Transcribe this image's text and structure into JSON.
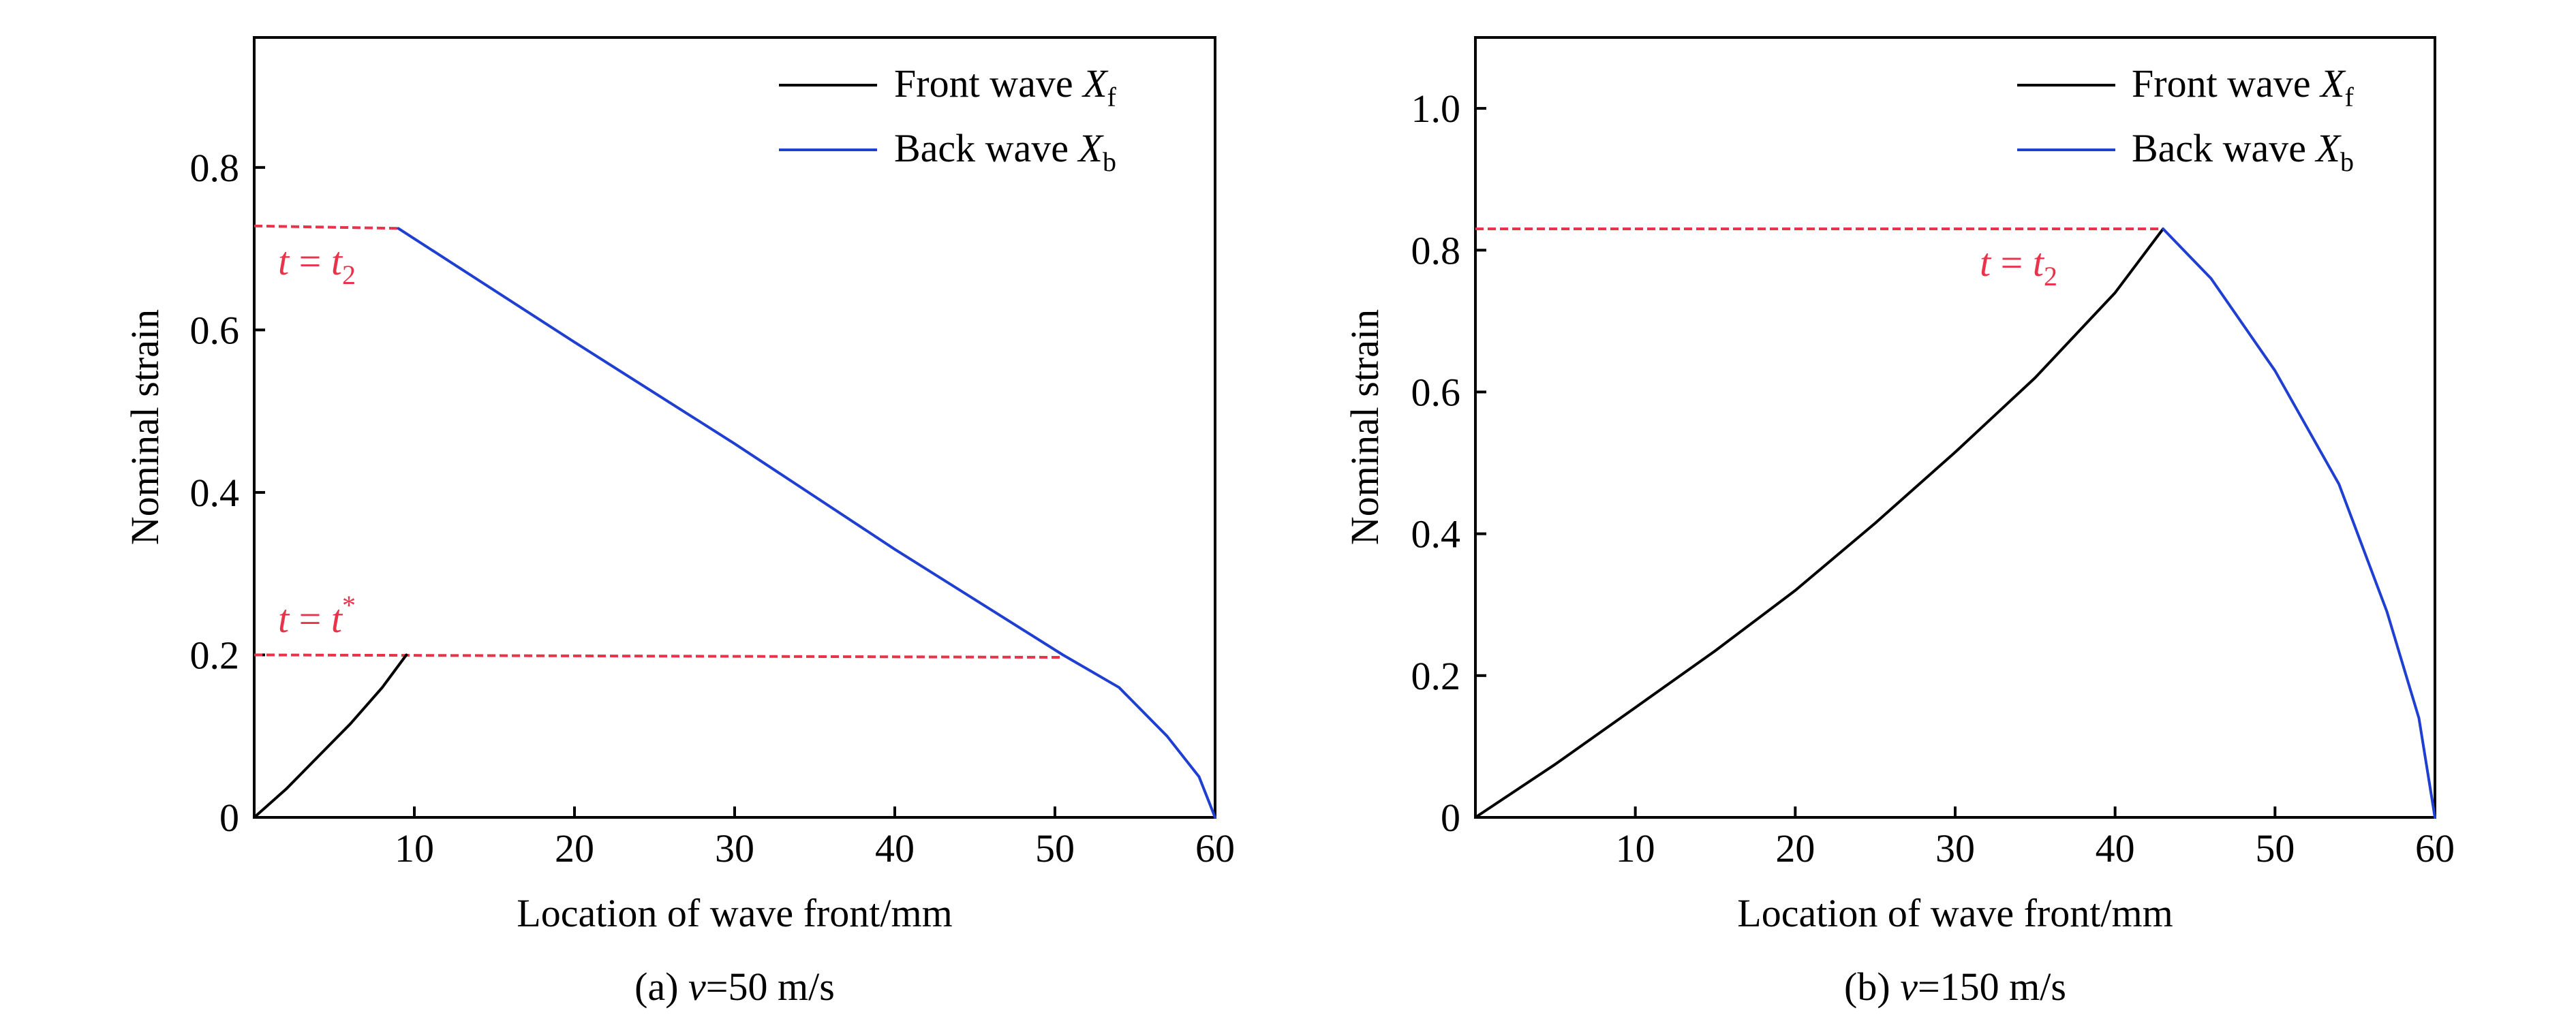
{
  "chart_data": [
    {
      "type": "line",
      "panel_id": "a",
      "caption_parts": [
        "(a) ",
        "v",
        "=50 m/s"
      ],
      "xlabel": "Location of wave front/mm",
      "ylabel": "Nominal strain",
      "xlim": [
        0,
        60
      ],
      "ylim": [
        0,
        0.96
      ],
      "xticks": [
        10,
        20,
        30,
        40,
        50,
        60
      ],
      "xtick_labels": [
        "10",
        "20",
        "30",
        "40",
        "50",
        "60"
      ],
      "yticks": [
        0,
        0.2,
        0.4,
        0.6,
        0.8
      ],
      "ytick_labels": [
        "0",
        "0.2",
        "0.4",
        "0.6",
        "0.8"
      ],
      "grid": false,
      "legend_position": "top-right",
      "series": [
        {
          "name": "Front wave X_f",
          "legend_parts": [
            "Front wave ",
            "X",
            "f"
          ],
          "color": "#000000",
          "x": [
            0.0,
            2.0,
            4.0,
            6.0,
            8.0,
            9.5
          ],
          "y": [
            0.0,
            0.035,
            0.075,
            0.115,
            0.16,
            0.2
          ]
        },
        {
          "name": "Back wave X_b",
          "legend_parts": [
            "Back wave ",
            "X",
            "b"
          ],
          "color": "#1f3fd1",
          "x": [
            9.0,
            20.0,
            30.0,
            40.0,
            50.5,
            54.0,
            57.0,
            59.0,
            60.0
          ],
          "y": [
            0.725,
            0.585,
            0.46,
            0.33,
            0.2,
            0.16,
            0.1,
            0.05,
            0.0
          ]
        }
      ],
      "reference_lines": [
        {
          "name": "t = t2",
          "color": "#e8334a",
          "x": [
            0.0,
            9.0
          ],
          "y": [
            0.728,
            0.725
          ]
        },
        {
          "name": "t = t*",
          "color": "#e8334a",
          "x": [
            0.0,
            50.5
          ],
          "y": [
            0.2,
            0.197
          ]
        }
      ],
      "annotations": [
        {
          "id": "a-t2",
          "parts": [
            "t",
            " = ",
            "t",
            "2"
          ],
          "color": "#e8334a"
        },
        {
          "id": "a-tstar",
          "parts": [
            "t",
            " = ",
            "t",
            "*"
          ],
          "color": "#e8334a"
        }
      ]
    },
    {
      "type": "line",
      "panel_id": "b",
      "caption_parts": [
        "(b) ",
        "v",
        "=150 m/s"
      ],
      "xlabel": "Location of wave front/mm",
      "ylabel": "Nominal strain",
      "xlim": [
        0,
        60
      ],
      "ylim": [
        0,
        1.1
      ],
      "xticks": [
        10,
        20,
        30,
        40,
        50,
        60
      ],
      "xtick_labels": [
        "10",
        "20",
        "30",
        "40",
        "50",
        "60"
      ],
      "yticks": [
        0,
        0.2,
        0.4,
        0.6,
        0.8,
        1.0
      ],
      "ytick_labels": [
        "0",
        "0.2",
        "0.4",
        "0.6",
        "0.8",
        "1.0"
      ],
      "grid": false,
      "legend_position": "top-right",
      "series": [
        {
          "name": "Front wave X_f",
          "legend_parts": [
            "Front wave ",
            "X",
            "f"
          ],
          "color": "#000000",
          "x": [
            0.0,
            5.0,
            10.0,
            15.0,
            20.0,
            25.0,
            30.0,
            35.0,
            40.0,
            43.0
          ],
          "y": [
            0.0,
            0.075,
            0.155,
            0.235,
            0.32,
            0.415,
            0.515,
            0.62,
            0.74,
            0.83
          ]
        },
        {
          "name": "Back wave X_b",
          "legend_parts": [
            "Back wave ",
            "X",
            "b"
          ],
          "color": "#1f3fd1",
          "x": [
            43.0,
            46.0,
            50.0,
            54.0,
            57.0,
            59.0,
            60.0
          ],
          "y": [
            0.83,
            0.76,
            0.63,
            0.47,
            0.29,
            0.14,
            0.0
          ]
        }
      ],
      "reference_lines": [
        {
          "name": "t = t2",
          "color": "#e8334a",
          "x": [
            0.0,
            43.0
          ],
          "y": [
            0.83,
            0.83
          ]
        }
      ],
      "annotations": [
        {
          "id": "b-t2",
          "parts": [
            "t",
            " = ",
            "t",
            "2"
          ],
          "color": "#e8334a"
        }
      ]
    }
  ]
}
